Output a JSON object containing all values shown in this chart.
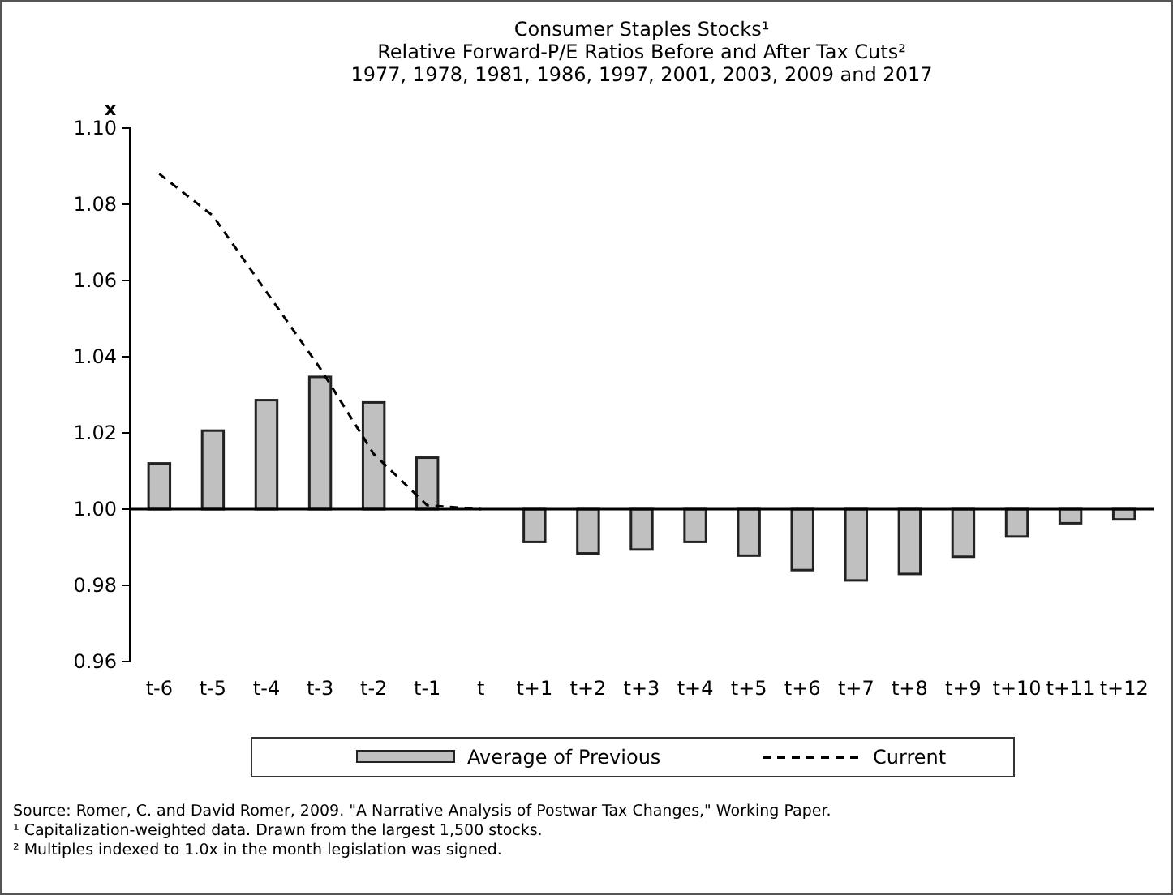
{
  "chart_data": {
    "type": "bar",
    "title": "Consumer Staples Stocks¹",
    "subtitle": "Relative Forward-P/E Ratios Before and After Tax Cuts²\n1977, 1978, 1981, 1986, 1997, 2001, 2003, 2009 and 2017",
    "ylabel": "x",
    "categories": [
      "t-6",
      "t-5",
      "t-4",
      "t-3",
      "t-2",
      "t-1",
      "t",
      "t+1",
      "t+2",
      "t+3",
      "t+4",
      "t+5",
      "t+6",
      "t+7",
      "t+8",
      "t+9",
      "t+10",
      "t+11",
      "t+12"
    ],
    "series": [
      {
        "name": "Average of Previous",
        "color": "#c0c0c0",
        "base": [
          1,
          1,
          1,
          1,
          1,
          1,
          null,
          1,
          1,
          1,
          1,
          1,
          1,
          1,
          1,
          1,
          1,
          1,
          1
        ],
        "values": [
          0.012,
          0.0206,
          0.0286,
          0.0347,
          0.028,
          0.0135,
          null,
          -0.0086,
          -0.0116,
          -0.0106,
          -0.0086,
          -0.0122,
          -0.016,
          -0.0187,
          -0.017,
          -0.0125,
          -0.0072,
          -0.0037,
          -0.0027
        ]
      },
      {
        "name": "Current",
        "type": "line",
        "color": "#000000",
        "line_style": "dashed",
        "values": [
          1.088,
          1.077,
          1.057,
          1.037,
          1.0145,
          1.001,
          1.0,
          null,
          null,
          null,
          null,
          null,
          null,
          null,
          null,
          null,
          null,
          null,
          null
        ]
      }
    ],
    "ylim": [
      0.96,
      1.1
    ],
    "yticks": [
      {
        "value": 0.96,
        "label": "0.96"
      },
      {
        "value": 0.98,
        "label": "0.98"
      },
      {
        "value": 1,
        "label": "1.00"
      },
      {
        "value": 1.02,
        "label": "1.02"
      },
      {
        "value": 1.04,
        "label": "1.04"
      },
      {
        "value": 1.06,
        "label": "1.06"
      },
      {
        "value": 1.08,
        "label": "1.08"
      },
      {
        "value": 1.1,
        "label": "1.10"
      }
    ],
    "ref_lines": [
      {
        "axis": "y",
        "value": 1,
        "color": "#000000"
      }
    ],
    "grid": false,
    "legend": "bottom",
    "marker": "none",
    "annotations": [
      "Source: Romer, C. and David Romer, 2009. \"A Narrative Analysis of Postwar Tax Changes,\" Working Paper.",
      "¹ Capitalization-weighted data. Drawn from the largest 1,500 stocks.",
      "² Multiples indexed to 1.0x in the month legislation was signed."
    ]
  }
}
